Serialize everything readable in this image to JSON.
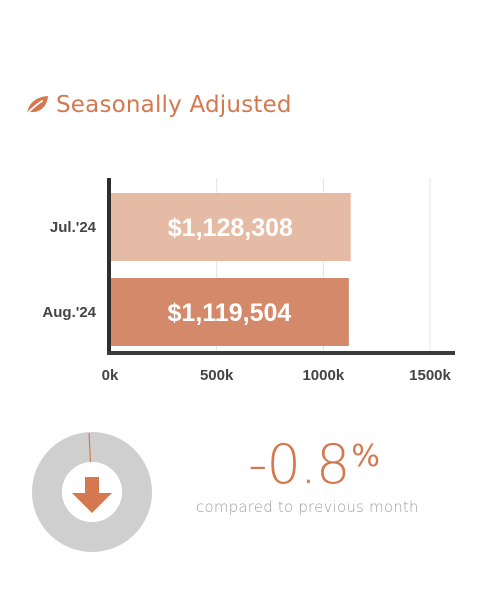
{
  "header": {
    "title": "Seasonally Adjusted",
    "icon": "leaf-icon",
    "accent_color": "#d4784f"
  },
  "chart_data": {
    "type": "bar",
    "orientation": "horizontal",
    "categories": [
      "Jul.'24",
      "Aug.'24"
    ],
    "values": [
      1128308,
      1119504
    ],
    "value_labels": [
      "$1,128,308",
      "$1,119,504"
    ],
    "bar_colors": [
      "#e6bba6",
      "#d4896a"
    ],
    "xlim": [
      0,
      1600000
    ],
    "xticks": [
      {
        "value": 0,
        "label": "0k"
      },
      {
        "value": 500000,
        "label": "500k"
      },
      {
        "value": 1000000,
        "label": "1000k"
      },
      {
        "value": 1500000,
        "label": "1500k"
      }
    ],
    "grid": true,
    "title": "",
    "xlabel": "",
    "ylabel": ""
  },
  "change": {
    "value": "-0.8",
    "sign": "%",
    "caption": "compared to previous month",
    "direction": "down",
    "fraction": 0.008
  }
}
